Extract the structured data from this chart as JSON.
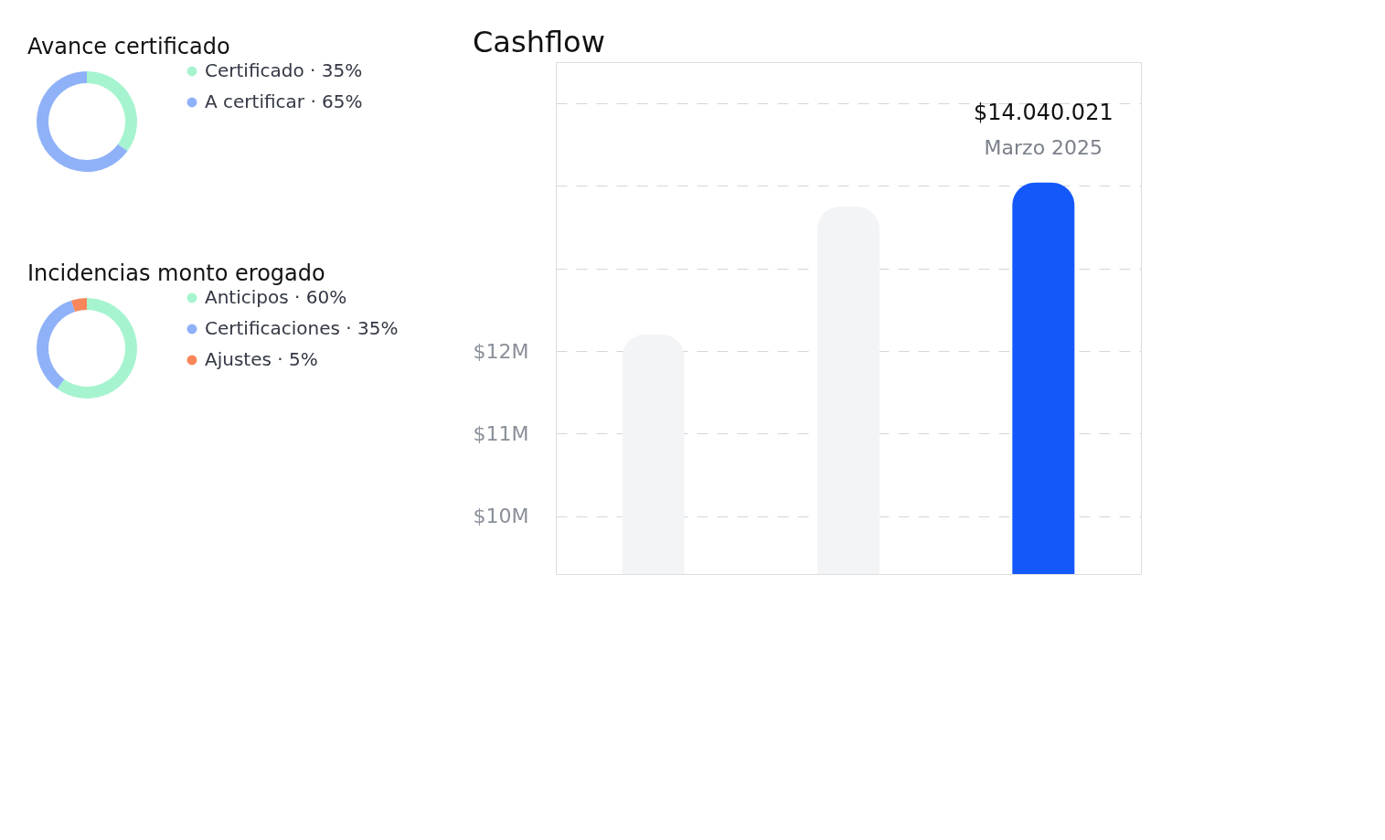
{
  "chart_data": [
    {
      "type": "donut",
      "title": "Avance certificado",
      "categories": [
        "Certificado",
        "A certificar"
      ],
      "values": [
        35,
        65
      ],
      "colors": [
        "#a6f4cf",
        "#8fb1f8"
      ],
      "value_labels": [
        "· 35%",
        "· 65%"
      ],
      "legend": "right"
    },
    {
      "type": "donut",
      "title": "Incidencias monto erogado",
      "categories": [
        "Anticipos",
        "Certificaciones",
        "Ajustes"
      ],
      "values": [
        60,
        35,
        5
      ],
      "colors": [
        "#a6f4cf",
        "#8fb1f8",
        "#f7875a"
      ],
      "value_labels": [
        "· 60%",
        "· 35%",
        "· 5%"
      ],
      "legend": "right"
    },
    {
      "type": "bar",
      "title": "Cashflow",
      "categories": [
        null,
        null,
        null
      ],
      "values": [
        12.2,
        13.75,
        14.04
      ],
      "colors": [
        "#f3f4f6",
        "#f3f4f6",
        "#1558fa"
      ],
      "annotations": [
        {
          "text": "$14.040.021",
          "y": 14.04
        },
        {
          "text": "Marzo 2025",
          "y": 14.04
        }
      ],
      "ylim": [
        9.3,
        15.5
      ],
      "yticks": [
        {
          "value": 10,
          "label": "$10M"
        },
        {
          "value": 11,
          "label": "$11M"
        },
        {
          "value": 12,
          "label": "$12M"
        },
        {
          "value": 13,
          "label": null
        },
        {
          "value": 14,
          "label": null
        },
        {
          "value": 15,
          "label": null
        }
      ],
      "grid": "y",
      "tick_labels": "y"
    }
  ]
}
